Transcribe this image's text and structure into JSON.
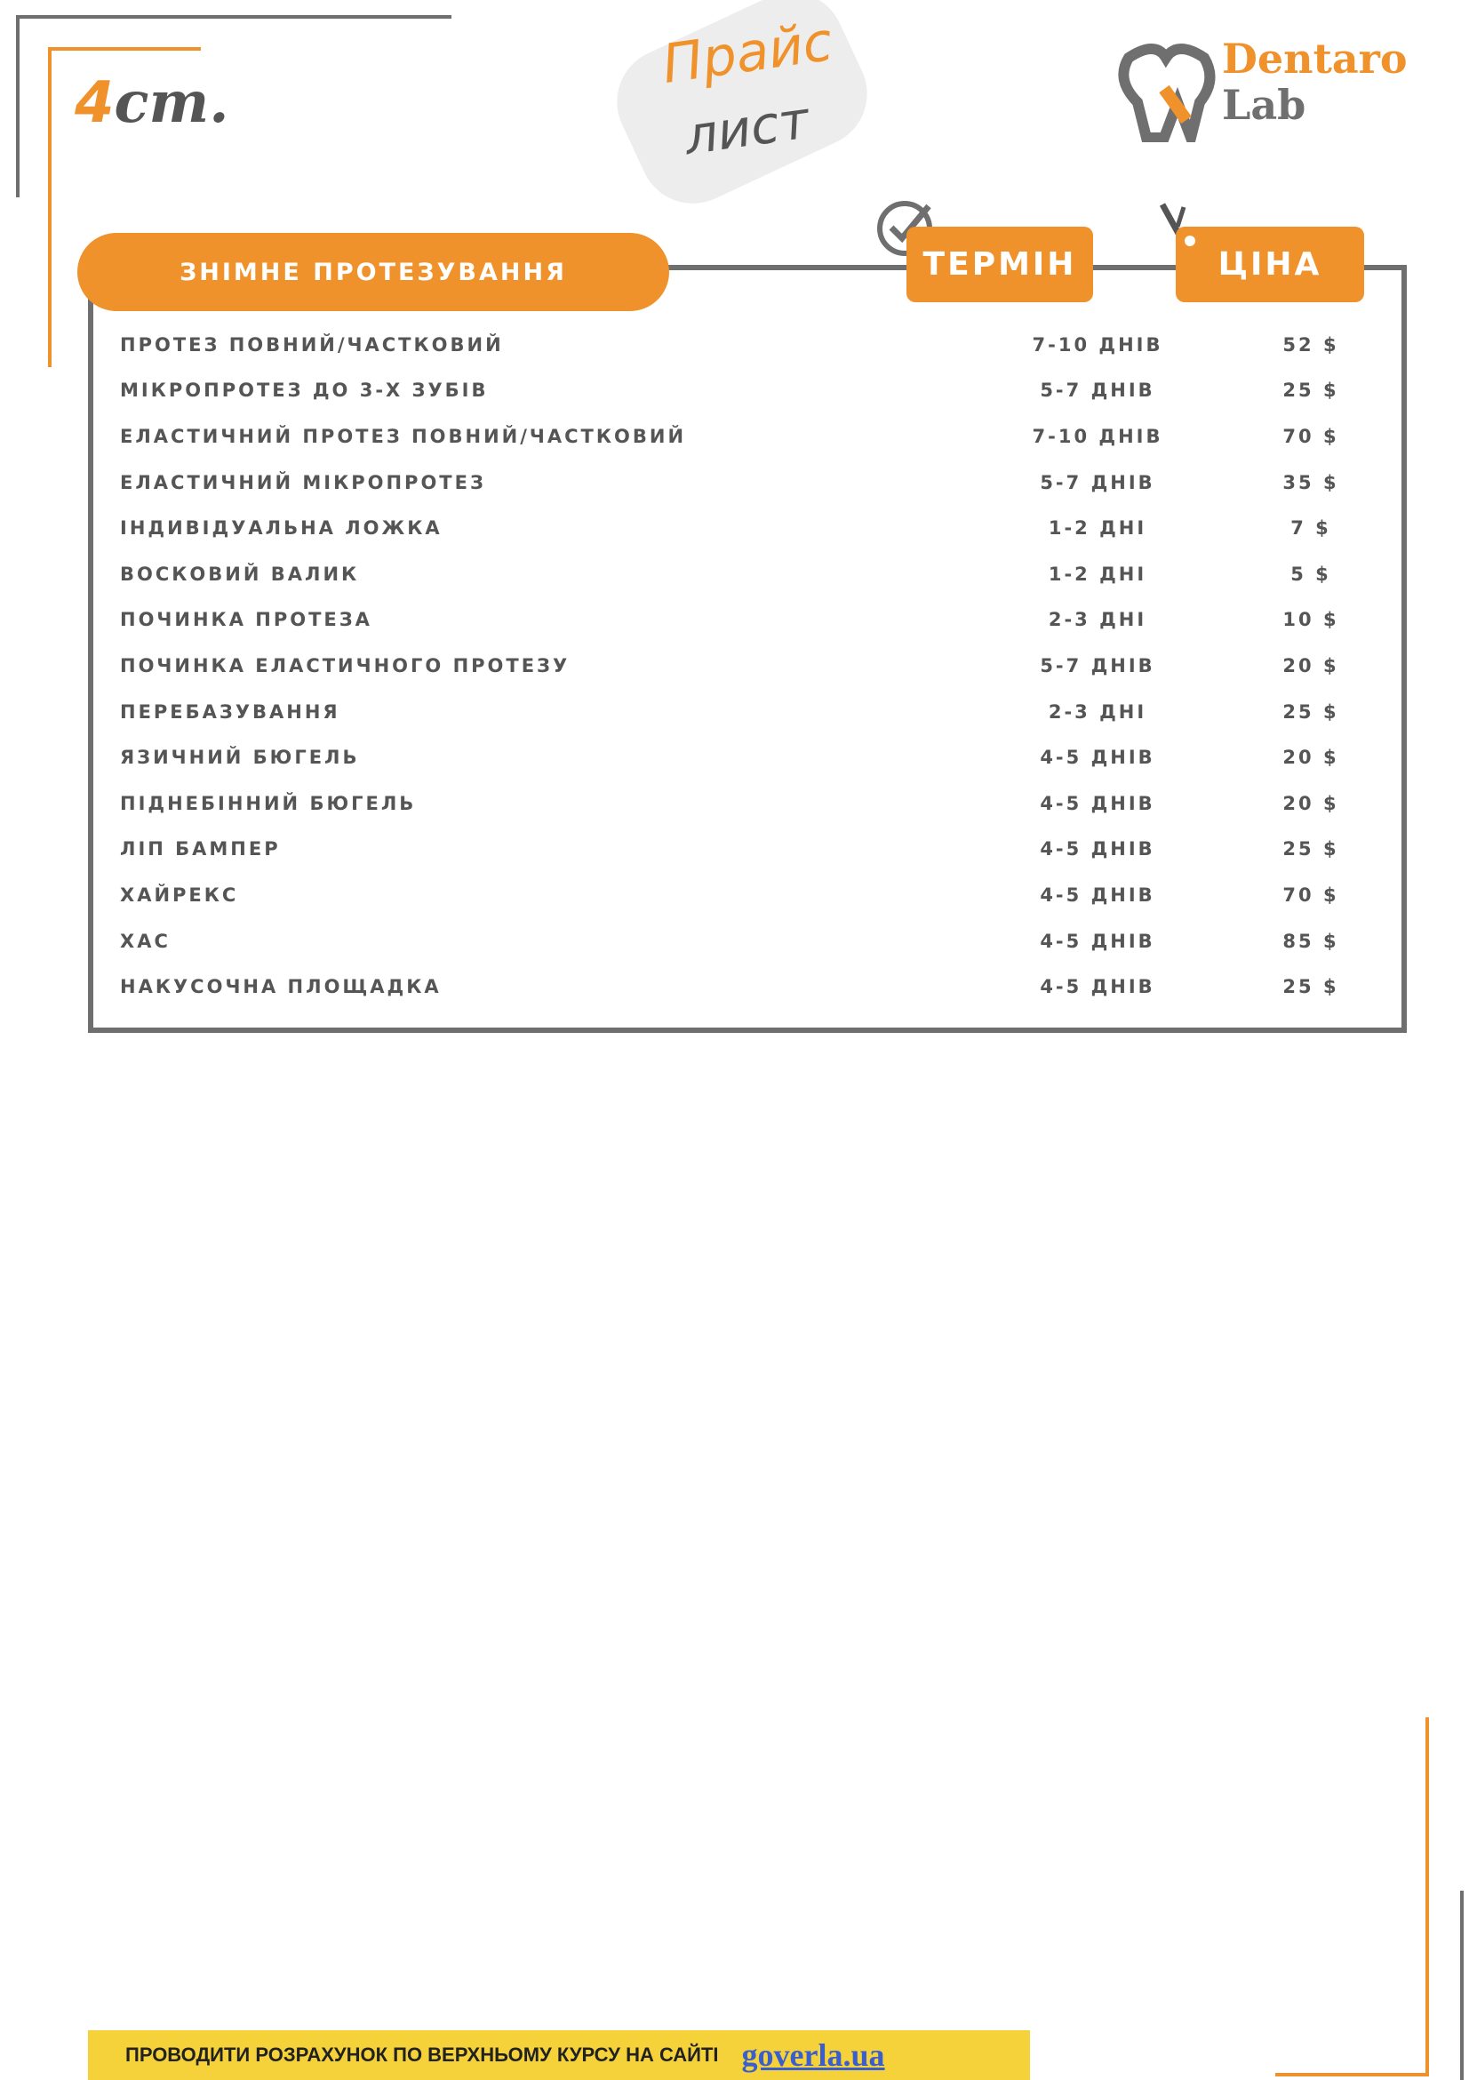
{
  "header": {
    "page": {
      "number": "4",
      "suffix": "ст."
    },
    "title": "Прайс",
    "subtitle": "лист",
    "logo": {
      "line1": "Dentaro",
      "line2": "Lab"
    }
  },
  "table": {
    "section": "ЗНІМНЕ ПРОТЕЗУВАННЯ",
    "columns": [
      "ТЕРМІН",
      "ЦІНА"
    ],
    "rows": [
      [
        "ПРОТЕЗ ПОВНИЙ/ЧАСТКОВИЙ",
        "7-10 ДНІВ",
        "52 $"
      ],
      [
        "МІКРОПРОТЕЗ ДО 3-Х ЗУБІВ",
        "5-7 ДНІВ",
        "25 $"
      ],
      [
        "ЕЛАСТИЧНИЙ ПРОТЕЗ ПОВНИЙ/ЧАСТКОВИЙ",
        "7-10 ДНІВ",
        "70 $"
      ],
      [
        "ЕЛАСТИЧНИЙ МІКРОПРОТЕЗ",
        "5-7 ДНІВ",
        "35 $"
      ],
      [
        "ІНДИВІДУАЛЬНА ЛОЖКА",
        "1-2 ДНІ",
        "7 $"
      ],
      [
        "ВОСКОВИЙ ВАЛИК",
        "1-2 ДНІ",
        "5 $"
      ],
      [
        "ПОЧИНКА ПРОТЕЗА",
        "2-3 ДНІ",
        "10 $"
      ],
      [
        "ПОЧИНКА ЕЛАСТИЧНОГО ПРОТЕЗУ",
        "5-7 ДНІВ",
        "20 $"
      ],
      [
        "ПЕРЕБАЗУВАННЯ",
        "2-3 ДНІ",
        "25 $"
      ],
      [
        "ЯЗИЧНИЙ БЮГЕЛЬ",
        "4-5 ДНІВ",
        "20 $"
      ],
      [
        "ПІДНЕБІННИЙ БЮГЕЛЬ",
        "4-5 ДНІВ",
        "20 $"
      ],
      [
        "ЛІП БАМПЕР",
        "4-5 ДНІВ",
        "25 $"
      ],
      [
        "ХАЙРЕКС",
        "4-5 ДНІВ",
        "70 $"
      ],
      [
        "ХАС",
        "4-5 ДНІВ",
        "85 $"
      ],
      [
        "НАКУСОЧНА ПЛОЩАДКА",
        "4-5 ДНІВ",
        "25 $"
      ]
    ]
  },
  "footer": {
    "text": "ПРОВОДИТИ РОЗРАХУНОК ПО ВЕРХНЬОМУ КУРСУ НА САЙТІ",
    "link": "goverla.ua"
  }
}
